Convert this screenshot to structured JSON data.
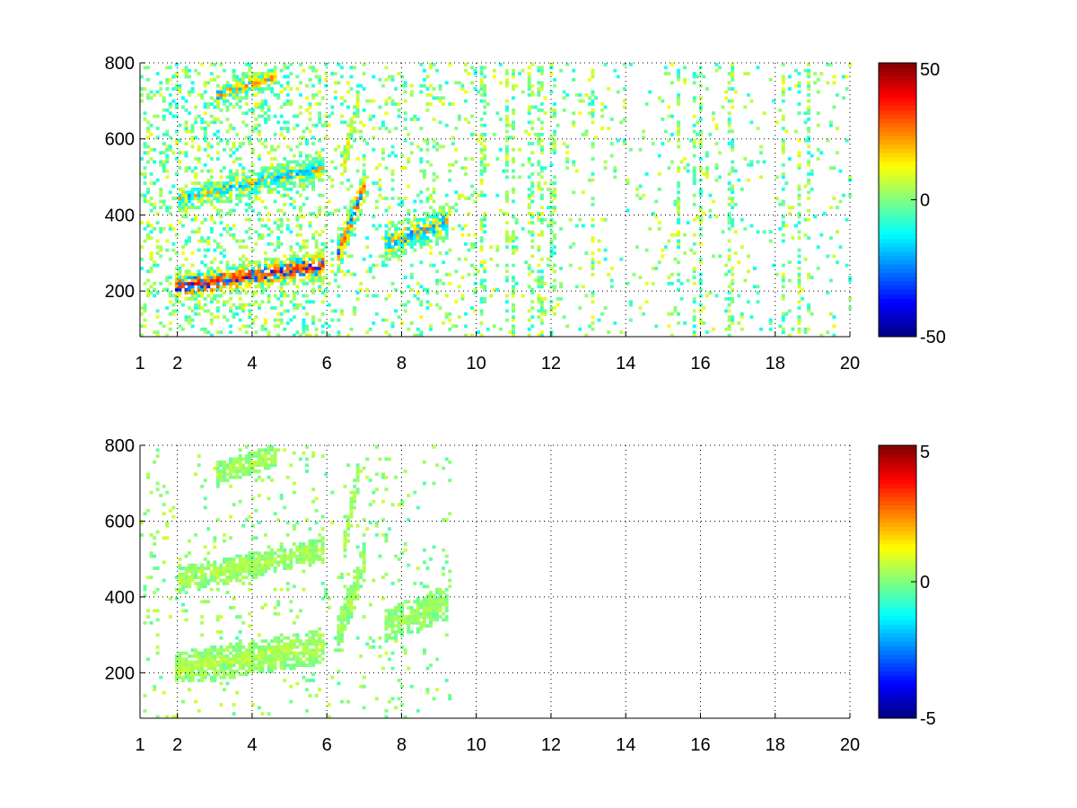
{
  "chart_data": [
    {
      "type": "heatmap",
      "title": "",
      "xlabel": "",
      "ylabel": "",
      "xlim": [
        1,
        20
      ],
      "ylim": [
        80,
        800
      ],
      "x_ticks": [
        1,
        2,
        4,
        6,
        8,
        10,
        12,
        14,
        16,
        18,
        20
      ],
      "y_ticks": [
        200,
        400,
        600,
        800
      ],
      "grid": true,
      "colormap": "jet",
      "colorbar": {
        "min": -50,
        "max": 50,
        "ticks": [
          50,
          0,
          -50
        ]
      },
      "features": [
        {
          "x": [
            1.9,
            5.9
          ],
          "y": [
            205,
            265
          ],
          "value": 40,
          "width": 80
        },
        {
          "x": [
            2.0,
            5.9
          ],
          "y": [
            440,
            520
          ],
          "value": -20,
          "width": 70
        },
        {
          "x": [
            3.0,
            4.6
          ],
          "y": [
            710,
            760
          ],
          "value": 25,
          "width": 60
        },
        {
          "x": [
            6.2,
            7.0
          ],
          "y": [
            280,
            480
          ],
          "value": 30,
          "width": 100
        },
        {
          "x": [
            6.4,
            6.8
          ],
          "y": [
            520,
            700
          ],
          "value": 15,
          "width": 80
        },
        {
          "x": [
            7.5,
            9.2
          ],
          "y": [
            320,
            380
          ],
          "value": -25,
          "width": 90
        }
      ],
      "noise_x_range": [
        1,
        20
      ],
      "noise_value_range": [
        -12,
        12
      ]
    },
    {
      "type": "heatmap",
      "title": "",
      "xlabel": "",
      "ylabel": "",
      "xlim": [
        1,
        20
      ],
      "ylim": [
        80,
        800
      ],
      "x_ticks": [
        1,
        2,
        4,
        6,
        8,
        10,
        12,
        14,
        16,
        18,
        20
      ],
      "y_ticks": [
        200,
        400,
        600,
        800
      ],
      "grid": true,
      "colormap": "jet",
      "colorbar": {
        "min": -5,
        "max": 5,
        "ticks": [
          5,
          0,
          -5
        ]
      },
      "features": [
        {
          "x": [
            1.9,
            5.9
          ],
          "y": [
            205,
            265
          ],
          "value": 0.6,
          "width": 90
        },
        {
          "x": [
            2.0,
            5.9
          ],
          "y": [
            440,
            520
          ],
          "value": 0.5,
          "width": 70
        },
        {
          "x": [
            3.0,
            4.6
          ],
          "y": [
            720,
            770
          ],
          "value": 0.5,
          "width": 60
        },
        {
          "x": [
            6.2,
            7.0
          ],
          "y": [
            280,
            500
          ],
          "value": 0.4,
          "width": 100
        },
        {
          "x": [
            6.4,
            6.8
          ],
          "y": [
            520,
            720
          ],
          "value": 0.5,
          "width": 80
        },
        {
          "x": [
            7.5,
            9.2
          ],
          "y": [
            320,
            380
          ],
          "value": 0.3,
          "width": 90
        }
      ],
      "noise_x_range": [
        1,
        10.3
      ],
      "noise_value_range": [
        -0.5,
        0.8
      ]
    }
  ]
}
